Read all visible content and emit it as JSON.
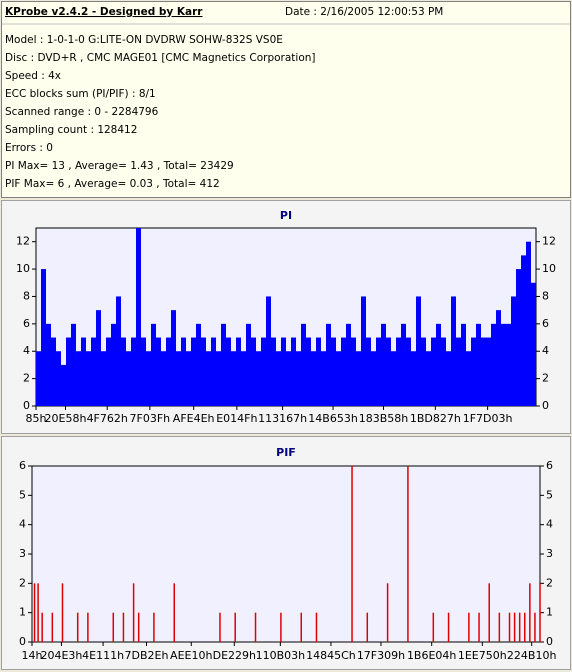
{
  "header": {
    "title": "KProbe v2.4.2 - Designed by Karr",
    "date": "Date : 2/16/2005 12:00:53 PM",
    "lines": [
      "Model : 1-0-1-0 G:LITE-ON DVDRW SOHW-832S  VS0E",
      "Disc : DVD+R , CMC MAGE01 [CMC Magnetics Corporation]",
      "Speed : 4x",
      "ECC blocks sum (PI/PIF) : 8/1",
      "Scanned range : 0 - 2284796",
      "Sampling count : 128412",
      "Errors : 0",
      "PI Max= 13 , Average= 1.43 , Total= 23429",
      "PIF Max= 6 , Average= 0.03 , Total= 412"
    ]
  },
  "chart_data": [
    {
      "type": "bar",
      "title": "PI",
      "color": "#0000ff",
      "x": [
        0,
        22848,
        45696,
        68544,
        91392,
        114240,
        137088,
        159936,
        182784,
        205632,
        228480,
        251328,
        274176,
        297024,
        319872,
        342720,
        365568,
        388416,
        411264,
        434112,
        456960,
        479808,
        502656,
        525504,
        548352,
        571200,
        594048,
        616896,
        639744,
        662592,
        685440,
        708288,
        731136,
        753984,
        776832,
        799680,
        822528,
        845376,
        868224,
        891072,
        913920,
        936768,
        959616,
        982464,
        1005312,
        1028160,
        1051008,
        1073856,
        1096704,
        1119552,
        1142400,
        1165248,
        1188096,
        1210944,
        1233792,
        1256640,
        1279488,
        1302336,
        1325184,
        1348032,
        1370880,
        1393728,
        1416576,
        1439424,
        1462272,
        1485120,
        1507968,
        1530816,
        1553664,
        1576512,
        1599360,
        1622208,
        1645056,
        1667904,
        1690752,
        1713600,
        1736448,
        1759296,
        1782144,
        1804992,
        1827840,
        1850688,
        1873536,
        1896384,
        1919232,
        1942080,
        1964928,
        1987776,
        2010624,
        2033472,
        2056320,
        2079168,
        2102016,
        2124864,
        2147712,
        2170560,
        2193408,
        2216256,
        2239104,
        2261952
      ],
      "values": [
        4,
        10,
        6,
        5,
        4,
        3,
        5,
        6,
        4,
        5,
        4,
        5,
        7,
        4,
        5,
        6,
        8,
        5,
        4,
        5,
        13,
        5,
        4,
        6,
        5,
        4,
        5,
        7,
        4,
        5,
        4,
        5,
        6,
        5,
        4,
        5,
        4,
        6,
        5,
        4,
        5,
        4,
        6,
        5,
        4,
        5,
        8,
        5,
        4,
        5,
        4,
        5,
        4,
        6,
        5,
        4,
        5,
        4,
        6,
        5,
        4,
        5,
        6,
        5,
        4,
        8,
        5,
        4,
        5,
        6,
        5,
        4,
        5,
        6,
        5,
        4,
        8,
        5,
        4,
        5,
        6,
        5,
        4,
        8,
        5,
        6,
        4,
        5,
        6,
        5,
        5,
        6,
        7,
        6,
        6,
        8,
        10,
        11,
        12,
        9
      ],
      "xlim": [
        0,
        2284796
      ],
      "ylim": [
        0,
        13
      ],
      "yticks": [
        0,
        2,
        4,
        6,
        8,
        10,
        12
      ],
      "xticks": [
        {
          "value": 133,
          "label": "85h"
        },
        {
          "value": 134744,
          "label": "20E58h"
        },
        {
          "value": 325474,
          "label": "4F762h"
        },
        {
          "value": 520255,
          "label": "7F03Fh"
        },
        {
          "value": 720462,
          "label": "AFE4Eh"
        },
        {
          "value": 917839,
          "label": "E014Fh"
        },
        {
          "value": 1126759,
          "label": "113167h"
        },
        {
          "value": 1357395,
          "label": "14B653h"
        },
        {
          "value": 1588056,
          "label": "183B58h"
        },
        {
          "value": 1824807,
          "label": "1BD827h"
        },
        {
          "value": 2063619,
          "label": "1F7D03h"
        }
      ]
    },
    {
      "type": "spike",
      "title": "PIF",
      "color": "#e00000",
      "x": [
        11424,
        27418,
        45696,
        91392,
        137088,
        205632,
        251328,
        365567,
        411263,
        456959,
        479807,
        548351,
        639743,
        845375,
        913918,
        1005310,
        1119550,
        1210942,
        1279486,
        1439421,
        1507965,
        1599357,
        1690749,
        1804989,
        1873533,
        1964925,
        2010620,
        2056316,
        2102012,
        2147708,
        2170556,
        2193404,
        2216252,
        2239100,
        2261948,
        2284796
      ],
      "values": [
        2,
        2,
        1,
        1,
        2,
        1,
        1,
        1,
        1,
        2,
        1,
        1,
        2,
        1,
        1,
        1,
        1,
        1,
        1,
        6,
        1,
        2,
        6,
        1,
        1,
        1,
        1,
        2,
        1,
        1,
        1,
        1,
        1,
        2,
        1,
        2
      ],
      "xlim": [
        0,
        2284796
      ],
      "ylim": [
        0,
        6
      ],
      "yticks": [
        0,
        1,
        2,
        3,
        4,
        5,
        6
      ],
      "xticks": [
        {
          "value": 20,
          "label": "14h"
        },
        {
          "value": 132323,
          "label": "204E3h"
        },
        {
          "value": 319761,
          "label": "4E111h"
        },
        {
          "value": 514862,
          "label": "7DB2Eh"
        },
        {
          "value": 716304,
          "label": "AEE10h"
        },
        {
          "value": 909865,
          "label": "DE229h"
        },
        {
          "value": 1116931,
          "label": "110B03h"
        },
        {
          "value": 1344604,
          "label": "14845Ch"
        },
        {
          "value": 1569545,
          "label": "17F309h"
        },
        {
          "value": 1797636,
          "label": "1B6E04h"
        },
        {
          "value": 2025296,
          "label": "1EE750h"
        },
        {
          "value": 2247440,
          "label": "224B10h"
        }
      ]
    }
  ]
}
